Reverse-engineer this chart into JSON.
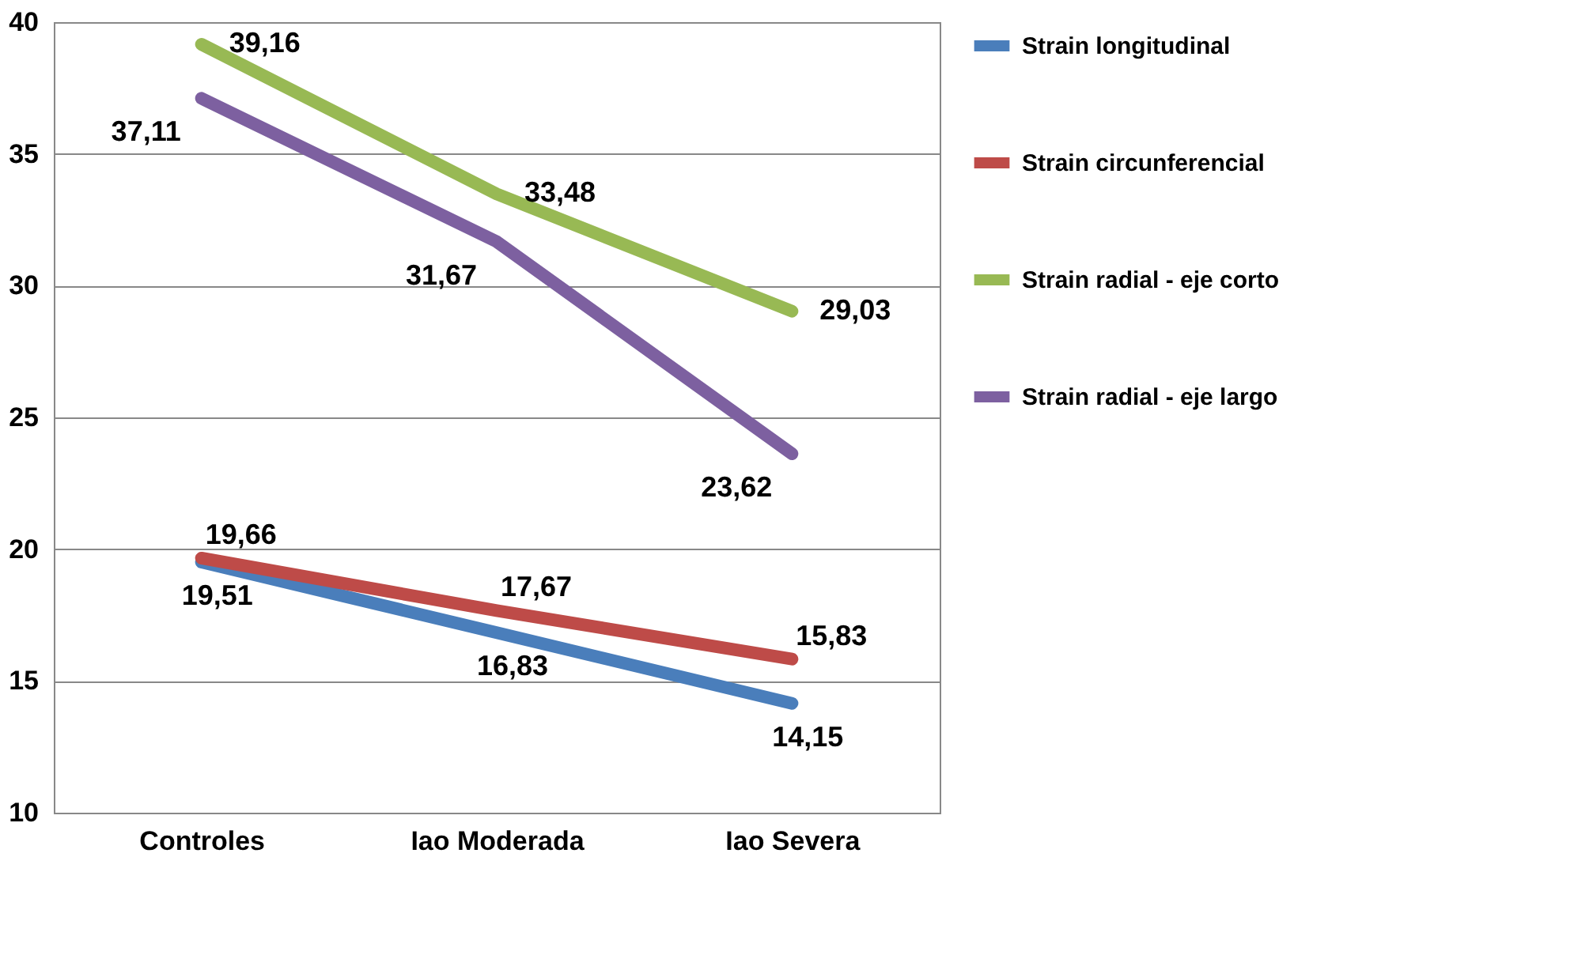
{
  "chart_data": {
    "type": "line",
    "categories": [
      "Controles",
      "Iao Moderada",
      "Iao Severa"
    ],
    "series": [
      {
        "name": "Strain longitudinal",
        "color": "#4a7ebb",
        "values": [
          19.51,
          16.83,
          14.15
        ],
        "value_labels": [
          "19,51",
          "16,83",
          "14,15"
        ]
      },
      {
        "name": "Strain circunferencial",
        "color": "#be4b48",
        "values": [
          19.66,
          17.67,
          15.83
        ],
        "value_labels": [
          "19,66",
          "17,67",
          "15,83"
        ]
      },
      {
        "name": "Strain radial - eje corto",
        "color": "#98b954",
        "values": [
          39.16,
          33.48,
          29.03
        ],
        "value_labels": [
          "39,16",
          "33,48",
          "29,03"
        ]
      },
      {
        "name": "Strain radial - eje largo",
        "color": "#7d60a0",
        "values": [
          37.11,
          31.67,
          23.62
        ],
        "value_labels": [
          "37,11",
          "31,67",
          "23,62"
        ]
      }
    ],
    "ylim": [
      10,
      40
    ],
    "yticks": [
      10,
      15,
      20,
      25,
      30,
      35,
      40
    ],
    "grid": "y",
    "legend": "right",
    "marker": "none",
    "line_style": "solid"
  }
}
